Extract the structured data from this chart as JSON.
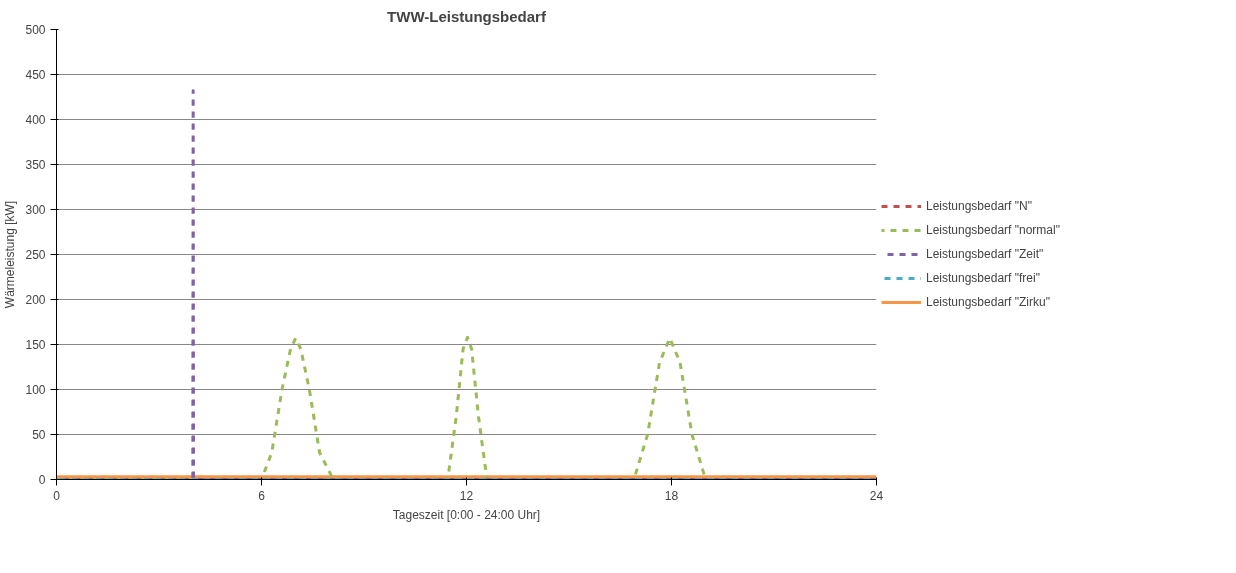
{
  "chart_data": {
    "type": "line",
    "title": "TWW-Leistungsbedarf",
    "xlabel": "Tageszeit [0:00 - 24:00 Uhr]",
    "ylabel": "Wärmeleistung [kW]",
    "xlim": [
      0,
      24
    ],
    "xticks": [
      0,
      6,
      12,
      18,
      24
    ],
    "ylim": [
      0,
      500
    ],
    "yticks": [
      0,
      50,
      100,
      150,
      200,
      250,
      300,
      350,
      400,
      450,
      500
    ],
    "grid": "y",
    "legend": "right",
    "marker": "none",
    "series": [
      {
        "name": "Leistungsbedarf \"N\"",
        "color": "#c0504d",
        "line_style": "dashed"
      },
      {
        "name": "Leistungsbedarf \"normal\"",
        "color": "#9bbb59",
        "line_style": "dashed",
        "x": [
          0,
          6,
          6.3,
          6.6,
          6.85,
          7,
          7.15,
          7.4,
          7.7,
          8.1,
          11.45,
          11.7,
          11.9,
          12.03,
          12.15,
          12.35,
          12.6,
          16.9,
          17.3,
          17.65,
          17.95,
          18.25,
          18.6,
          19,
          24
        ],
        "values": [
          0,
          0,
          30,
          100,
          145,
          157,
          145,
          100,
          30,
          0,
          0,
          70,
          145,
          158,
          145,
          70,
          0,
          0,
          50,
          130,
          157,
          130,
          50,
          0,
          0
        ]
      },
      {
        "name": "Leistungsbedarf \"Zeit\"",
        "color": "#8064a2",
        "line_style": "dashed",
        "x": [
          0,
          3.99,
          4,
          4.01,
          24
        ],
        "values": [
          0,
          0,
          432,
          0,
          0
        ]
      },
      {
        "name": "Leistungsbedarf \"frei\"",
        "color": "#4bacc6",
        "line_style": "dashed",
        "x": [
          0,
          24
        ],
        "values": [
          0,
          0
        ]
      },
      {
        "name": "Leistungsbedarf \"Zirku\"",
        "color": "#f79646",
        "line_style": "solid",
        "x": [
          0,
          24
        ],
        "values": [
          3,
          3
        ]
      }
    ]
  }
}
